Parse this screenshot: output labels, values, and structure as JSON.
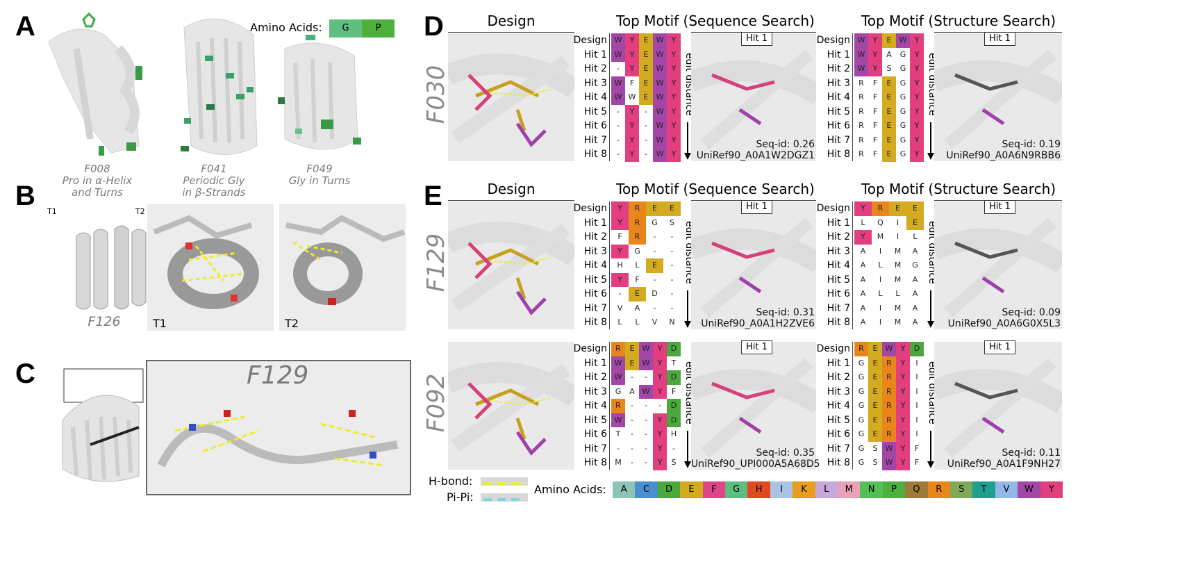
{
  "panel_labels": [
    "A",
    "B",
    "C",
    "D",
    "E"
  ],
  "panelA": {
    "legend_title": "Amino Acids:",
    "legend": [
      {
        "aa": "G",
        "color": "#5fbf7f"
      },
      {
        "aa": "P",
        "color": "#4daf3c"
      }
    ],
    "captions": [
      {
        "name": "F008",
        "l1": "Pro in α-Helix",
        "l2": "and Turns"
      },
      {
        "name": "F041",
        "l1": "Periodic Gly",
        "l2": "in β-Strands"
      },
      {
        "name": "F049",
        "l1": "Gly in Turns",
        "l2": ""
      }
    ]
  },
  "panelB": {
    "name": "F126",
    "arrows": [
      "T1",
      "T2"
    ],
    "zoom_labels": [
      "T1",
      "T2"
    ]
  },
  "panelC": {
    "title": "F129"
  },
  "col_headers": {
    "design": "Design",
    "seq": "Top Motif (Sequence Search)",
    "struct": "Top Motif (Structure Search)"
  },
  "edit_distance": "edit distance",
  "hit_label": "Hit 1",
  "row_labels": [
    "Design",
    "Hit 1",
    "Hit 2",
    "Hit 3",
    "Hit 4",
    "Hit 5",
    "Hit 6",
    "Hit 7",
    "Hit 8"
  ],
  "rows": [
    {
      "name": "F030",
      "seq_grid": [
        [
          "W",
          "Y",
          "E",
          "W",
          "Y"
        ],
        [
          "W",
          "Y",
          "E",
          "W",
          "Y"
        ],
        [
          "-",
          "Y",
          "E",
          "W",
          "Y"
        ],
        [
          "W",
          "F",
          "E",
          "W",
          "Y"
        ],
        [
          "W",
          "W",
          "E",
          "W",
          "Y"
        ],
        [
          "-",
          "Y",
          "-",
          "W",
          "Y"
        ],
        [
          "-",
          "Y",
          "-",
          "W",
          "Y"
        ],
        [
          "-",
          "Y",
          "-",
          "W",
          "Y"
        ],
        [
          "-",
          "Y",
          "-",
          "W",
          "Y"
        ]
      ],
      "seq_hl": [
        [
          1,
          1,
          1,
          1,
          1
        ],
        [
          1,
          1,
          1,
          1,
          1
        ],
        [
          0,
          1,
          1,
          1,
          1
        ],
        [
          1,
          0,
          1,
          1,
          1
        ],
        [
          1,
          0,
          1,
          1,
          1
        ],
        [
          0,
          1,
          0,
          1,
          1
        ],
        [
          0,
          1,
          0,
          1,
          1
        ],
        [
          0,
          1,
          0,
          1,
          1
        ],
        [
          0,
          1,
          0,
          1,
          1
        ]
      ],
      "seq_id": "Seq-id: 0.26",
      "seq_ref": "UniRef90_A0A1W2DGZ1",
      "str_grid": [
        [
          "W",
          "Y",
          "E",
          "W",
          "Y"
        ],
        [
          "W",
          "Y",
          "A",
          "G",
          "Y"
        ],
        [
          "W",
          "Y",
          "S",
          "G",
          "Y"
        ],
        [
          "R",
          "F",
          "E",
          "G",
          "Y"
        ],
        [
          "R",
          "F",
          "E",
          "G",
          "Y"
        ],
        [
          "R",
          "F",
          "E",
          "G",
          "Y"
        ],
        [
          "R",
          "F",
          "E",
          "G",
          "Y"
        ],
        [
          "R",
          "F",
          "E",
          "G",
          "Y"
        ],
        [
          "R",
          "F",
          "E",
          "G",
          "Y"
        ]
      ],
      "str_hl": [
        [
          1,
          1,
          1,
          1,
          1
        ],
        [
          1,
          1,
          0,
          0,
          1
        ],
        [
          1,
          1,
          0,
          0,
          1
        ],
        [
          0,
          0,
          1,
          0,
          1
        ],
        [
          0,
          0,
          1,
          0,
          1
        ],
        [
          0,
          0,
          1,
          0,
          1
        ],
        [
          0,
          0,
          1,
          0,
          1
        ],
        [
          0,
          0,
          1,
          0,
          1
        ],
        [
          0,
          0,
          1,
          0,
          1
        ]
      ],
      "str_id": "Seq-id: 0.19",
      "str_ref": "UniRef90_A0A6N9RBB6"
    },
    {
      "name": "F129",
      "seq_grid": [
        [
          "Y",
          "R",
          "E",
          "E"
        ],
        [
          "Y",
          "R",
          "G",
          "S"
        ],
        [
          "F",
          "R",
          "-",
          "-"
        ],
        [
          "Y",
          "G",
          "-",
          "-"
        ],
        [
          "H",
          "L",
          "E",
          "-"
        ],
        [
          "Y",
          "F",
          "-",
          "-"
        ],
        [
          "-",
          "E",
          "D",
          "-"
        ],
        [
          "V",
          "A",
          "-",
          "-"
        ],
        [
          "L",
          "L",
          "V",
          "N"
        ]
      ],
      "seq_hl": [
        [
          1,
          1,
          1,
          1
        ],
        [
          1,
          1,
          0,
          0
        ],
        [
          0,
          1,
          0,
          0
        ],
        [
          1,
          0,
          0,
          0
        ],
        [
          0,
          0,
          1,
          0
        ],
        [
          1,
          0,
          0,
          0
        ],
        [
          0,
          1,
          0,
          0
        ],
        [
          0,
          0,
          0,
          0
        ],
        [
          0,
          0,
          0,
          0
        ]
      ],
      "seq_id": "Seq-id: 0.31",
      "seq_ref": "UniRef90_A0A1H2ZVE6",
      "str_grid": [
        [
          "Y",
          "R",
          "E",
          "E"
        ],
        [
          "L",
          "Q",
          "I",
          "E"
        ],
        [
          "Y",
          "M",
          "I",
          "L"
        ],
        [
          "A",
          "I",
          "M",
          "A"
        ],
        [
          "A",
          "L",
          "M",
          "G"
        ],
        [
          "A",
          "I",
          "M",
          "A"
        ],
        [
          "A",
          "L",
          "L",
          "A"
        ],
        [
          "A",
          "I",
          "M",
          "A"
        ],
        [
          "A",
          "I",
          "M",
          "A"
        ]
      ],
      "str_hl": [
        [
          1,
          1,
          1,
          1
        ],
        [
          0,
          0,
          0,
          1
        ],
        [
          1,
          0,
          0,
          0
        ],
        [
          0,
          0,
          0,
          0
        ],
        [
          0,
          0,
          0,
          0
        ],
        [
          0,
          0,
          0,
          0
        ],
        [
          0,
          0,
          0,
          0
        ],
        [
          0,
          0,
          0,
          0
        ],
        [
          0,
          0,
          0,
          0
        ]
      ],
      "str_id": "Seq-id: 0.09",
      "str_ref": "UniRef90_A0A6G0X5L3"
    },
    {
      "name": "F092",
      "seq_grid": [
        [
          "R",
          "E",
          "W",
          "Y",
          "D"
        ],
        [
          "W",
          "E",
          "W",
          "Y",
          "T"
        ],
        [
          "W",
          "-",
          "-",
          "Y",
          "D"
        ],
        [
          "G",
          "A",
          "W",
          "Y",
          "F"
        ],
        [
          "R",
          "-",
          "-",
          "-",
          "D"
        ],
        [
          "W",
          "-",
          "-",
          "Y",
          "D"
        ],
        [
          "T",
          "-",
          "-",
          "Y",
          "H"
        ],
        [
          "-",
          "-",
          "-",
          "Y",
          "-"
        ],
        [
          "M",
          "-",
          "-",
          "Y",
          "S"
        ]
      ],
      "seq_hl": [
        [
          1,
          1,
          1,
          1,
          1
        ],
        [
          1,
          1,
          1,
          1,
          0
        ],
        [
          1,
          0,
          0,
          1,
          1
        ],
        [
          0,
          0,
          1,
          1,
          0
        ],
        [
          1,
          0,
          0,
          0,
          1
        ],
        [
          1,
          0,
          0,
          1,
          1
        ],
        [
          0,
          0,
          0,
          1,
          0
        ],
        [
          0,
          0,
          0,
          1,
          0
        ],
        [
          0,
          0,
          0,
          1,
          0
        ]
      ],
      "seq_id": "Seq-id: 0.35",
      "seq_ref": "UniRef90_UPI000A5A68D5",
      "str_grid": [
        [
          "R",
          "E",
          "W",
          "Y",
          "D"
        ],
        [
          "G",
          "E",
          "R",
          "Y",
          "I"
        ],
        [
          "G",
          "E",
          "R",
          "Y",
          "I"
        ],
        [
          "G",
          "E",
          "R",
          "Y",
          "I"
        ],
        [
          "G",
          "E",
          "R",
          "Y",
          "I"
        ],
        [
          "G",
          "E",
          "R",
          "Y",
          "I"
        ],
        [
          "G",
          "E",
          "R",
          "Y",
          "I"
        ],
        [
          "G",
          "S",
          "W",
          "Y",
          "F"
        ],
        [
          "G",
          "S",
          "W",
          "Y",
          "F"
        ]
      ],
      "str_hl": [
        [
          1,
          1,
          1,
          1,
          1
        ],
        [
          0,
          1,
          1,
          1,
          0
        ],
        [
          0,
          1,
          1,
          1,
          0
        ],
        [
          0,
          1,
          1,
          1,
          0
        ],
        [
          0,
          1,
          1,
          1,
          0
        ],
        [
          0,
          1,
          1,
          1,
          0
        ],
        [
          0,
          1,
          1,
          1,
          0
        ],
        [
          0,
          0,
          1,
          1,
          0
        ],
        [
          0,
          0,
          1,
          1,
          0
        ]
      ],
      "str_id": "Seq-id: 0.11",
      "str_ref": "UniRef90_A0A1F9NH27"
    }
  ],
  "aa_colors": {
    "A": "#8cc5b5",
    "C": "#4a8fd0",
    "D": "#4aa83c",
    "E": "#d4aa1e",
    "F": "#e0458a",
    "G": "#5cbf82",
    "H": "#e04a1c",
    "I": "#a9c2e6",
    "K": "#e89d1c",
    "L": "#c8a8d8",
    "M": "#eaa0b8",
    "N": "#56be56",
    "P": "#4daf3c",
    "Q": "#a07838",
    "R": "#e8861c",
    "S": "#7ea85a",
    "T": "#1ea090",
    "V": "#92b8ea",
    "W": "#a446a8",
    "Y": "#e23e80"
  },
  "bottom_legend": {
    "hbond": "H-bond:",
    "pipi": "Pi-Pi:",
    "hbond_color": "#f0e84a",
    "pipi_color": "#7fd6e4",
    "aa_title": "Amino Acids:",
    "aa_list": [
      "A",
      "C",
      "D",
      "E",
      "F",
      "G",
      "H",
      "I",
      "K",
      "L",
      "M",
      "N",
      "P",
      "Q",
      "R",
      "S",
      "T",
      "V",
      "W",
      "Y"
    ]
  }
}
